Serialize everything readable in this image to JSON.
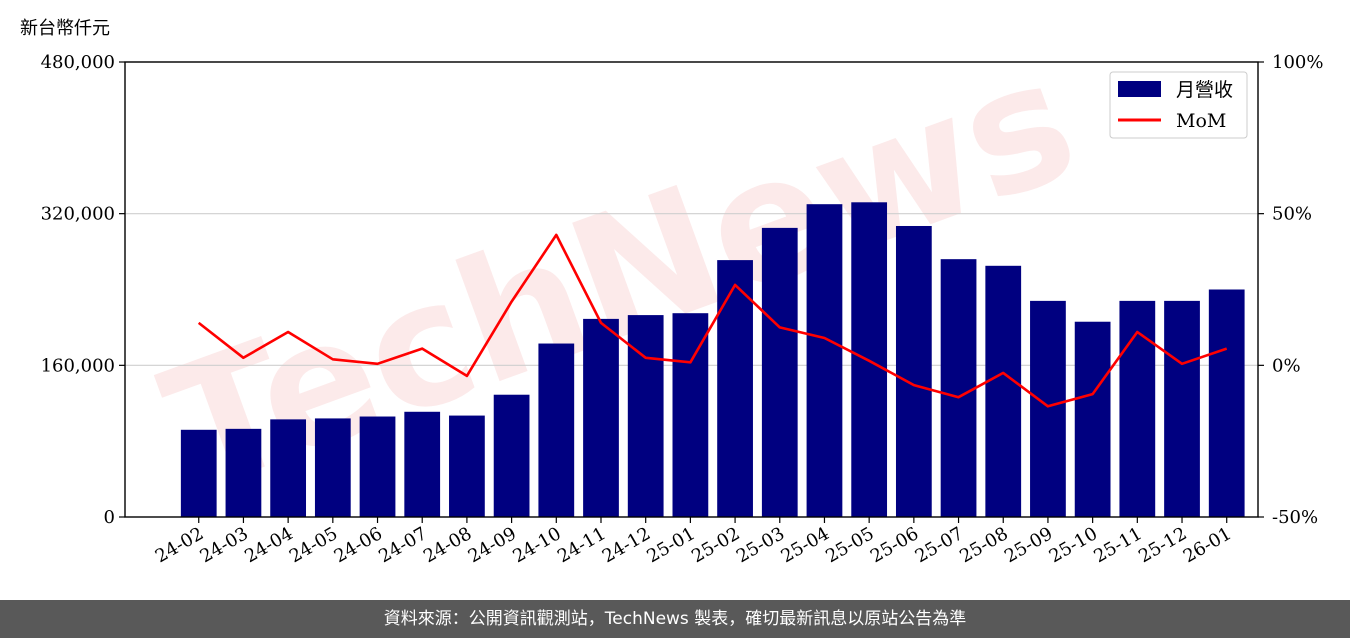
{
  "chart_data": {
    "type": "bar",
    "ylabel": "新台幣仟元",
    "categories": [
      "24-02",
      "24-03",
      "24-04",
      "24-05",
      "24-06",
      "24-07",
      "24-08",
      "24-09",
      "24-10",
      "24-11",
      "24-12",
      "25-01",
      "25-02",
      "25-03",
      "25-04",
      "25-05",
      "25-06",
      "25-07",
      "25-08",
      "25-09",
      "25-10",
      "25-11",
      "25-12",
      "26-01"
    ],
    "series": [
      {
        "name": "月營收",
        "kind": "bar",
        "axis": "left",
        "color": "#000080",
        "values": [
          92000,
          93000,
          103000,
          104000,
          106000,
          111000,
          107000,
          129000,
          183000,
          209000,
          213000,
          215000,
          271000,
          305000,
          330000,
          332000,
          307000,
          272000,
          265000,
          228000,
          206000,
          228000,
          228000,
          240000
        ]
      },
      {
        "name": "MoM",
        "kind": "line",
        "axis": "right",
        "color": "#ff0000",
        "values": [
          14,
          2.5,
          11,
          2,
          0.5,
          5.5,
          -3.5,
          21,
          43,
          14,
          2.5,
          1,
          26.5,
          12.5,
          9,
          1.5,
          -6.5,
          -10.5,
          -2.5,
          -13.5,
          -9.5,
          11,
          0.5,
          5.5
        ]
      }
    ],
    "ylim_left": [
      0,
      480000
    ],
    "yticks_left": [
      "0",
      "160,000",
      "320,000",
      "480,000"
    ],
    "ylim_right": [
      -50,
      100
    ],
    "yticks_right": [
      "-50%",
      "0%",
      "50%",
      "100%"
    ],
    "grid": "horizontal",
    "legend_position": "top-right"
  },
  "watermark": "TechNews",
  "footer": "資料來源：公開資訊觀測站，TechNews 製表，確切最新訊息以原站公告為準"
}
